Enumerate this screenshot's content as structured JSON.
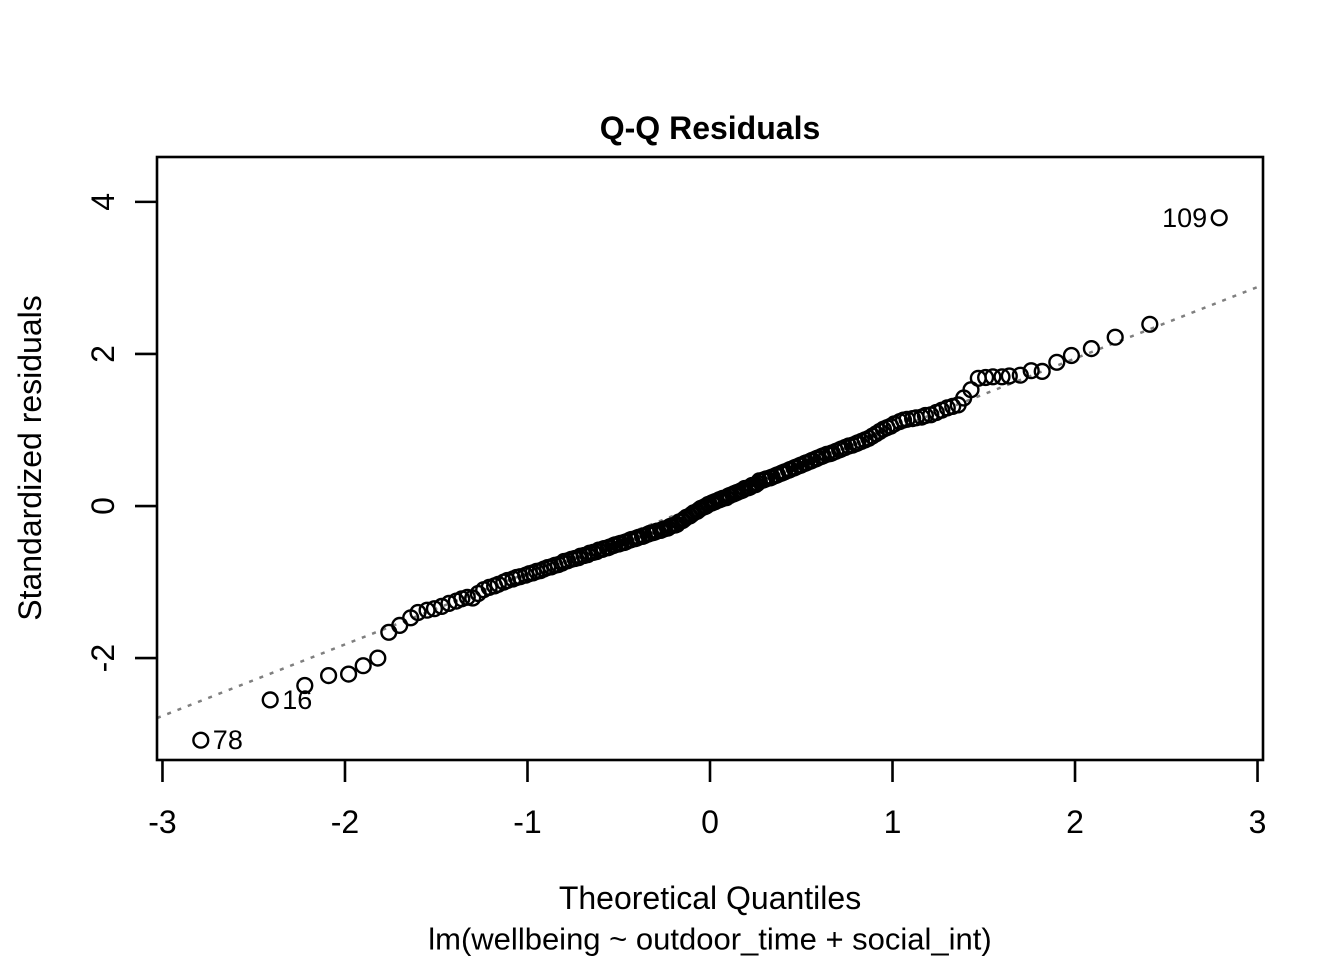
{
  "title": "Q-Q Residuals",
  "x_axis_label": "Theoretical Quantiles",
  "y_axis_label": "Standardized residuals",
  "model_label": "lm(wellbeing ~ outdoor_time + social_int)",
  "colors": {
    "foreground": "#000000",
    "background": "#ffffff",
    "reference_line": "#7f7f7f"
  },
  "chart_data": {
    "type": "scatter",
    "title": "Q-Q Residuals",
    "xlabel": "Theoretical Quantiles",
    "ylabel": "Standardized residuals",
    "subtitle": "lm(wellbeing ~ outdoor_time + social_int)",
    "grid": false,
    "legend": "none",
    "xlim": [
      -3.03,
      3.03
    ],
    "ylim": [
      -3.34,
      4.59
    ],
    "xticks": [
      -3,
      -2,
      -1,
      0,
      1,
      2,
      3
    ],
    "yticks": [
      -2,
      0,
      2,
      4
    ],
    "point_style": {
      "shape": "open-circle",
      "radius_px": 7.4,
      "stroke_px": 2.4,
      "color": "#000000"
    },
    "reference_line": {
      "slope": 0.94,
      "intercept": 0.06,
      "style": "dotted",
      "color": "#7f7f7f"
    },
    "labeled_points": [
      {
        "label": "78",
        "x": -2.79,
        "y": -3.08,
        "side": "right"
      },
      {
        "label": "16",
        "x": -2.41,
        "y": -2.55,
        "side": "right"
      },
      {
        "label": "109",
        "x": 2.79,
        "y": 3.79,
        "side": "left"
      }
    ],
    "points": [
      [
        -2.79,
        -3.08
      ],
      [
        -2.41,
        -2.55
      ],
      [
        -2.22,
        -2.36
      ],
      [
        -2.09,
        -2.23
      ],
      [
        -1.98,
        -2.21
      ],
      [
        -1.9,
        -2.1
      ],
      [
        -1.82,
        -2.0
      ],
      [
        -1.76,
        -1.66
      ],
      [
        -1.7,
        -1.57
      ],
      [
        -1.64,
        -1.47
      ],
      [
        -1.6,
        -1.4
      ],
      [
        -1.55,
        -1.37
      ],
      [
        -1.51,
        -1.35
      ],
      [
        -1.47,
        -1.32
      ],
      [
        -1.43,
        -1.28
      ],
      [
        -1.39,
        -1.25
      ],
      [
        -1.36,
        -1.22
      ],
      [
        -1.33,
        -1.2
      ],
      [
        -1.3,
        -1.21
      ],
      [
        -1.27,
        -1.15
      ],
      [
        -1.24,
        -1.1
      ],
      [
        -1.21,
        -1.07
      ],
      [
        -1.18,
        -1.05
      ],
      [
        -1.16,
        -1.03
      ],
      [
        -1.13,
        -1.0
      ],
      [
        -1.11,
        -0.98
      ],
      [
        -1.08,
        -0.96
      ],
      [
        -1.06,
        -0.94
      ],
      [
        -1.04,
        -0.93
      ],
      [
        -1.01,
        -0.91
      ],
      [
        -0.99,
        -0.89
      ],
      [
        -0.97,
        -0.88
      ],
      [
        -0.95,
        -0.86
      ],
      [
        -0.93,
        -0.85
      ],
      [
        -0.91,
        -0.83
      ],
      [
        -0.89,
        -0.81
      ],
      [
        -0.87,
        -0.8
      ],
      [
        -0.85,
        -0.78
      ],
      [
        -0.83,
        -0.77
      ],
      [
        -0.81,
        -0.75
      ],
      [
        -0.8,
        -0.73
      ],
      [
        -0.78,
        -0.72
      ],
      [
        -0.76,
        -0.7
      ],
      [
        -0.74,
        -0.69
      ],
      [
        -0.72,
        -0.68
      ],
      [
        -0.71,
        -0.66
      ],
      [
        -0.69,
        -0.65
      ],
      [
        -0.67,
        -0.64
      ],
      [
        -0.66,
        -0.62
      ],
      [
        -0.64,
        -0.61
      ],
      [
        -0.62,
        -0.6
      ],
      [
        -0.61,
        -0.58
      ],
      [
        -0.59,
        -0.57
      ],
      [
        -0.58,
        -0.56
      ],
      [
        -0.56,
        -0.55
      ],
      [
        -0.55,
        -0.54
      ],
      [
        -0.53,
        -0.52
      ],
      [
        -0.52,
        -0.51
      ],
      [
        -0.5,
        -0.5
      ],
      [
        -0.49,
        -0.49
      ],
      [
        -0.47,
        -0.48
      ],
      [
        -0.46,
        -0.47
      ],
      [
        -0.44,
        -0.45
      ],
      [
        -0.43,
        -0.44
      ],
      [
        -0.41,
        -0.43
      ],
      [
        -0.4,
        -0.42
      ],
      [
        -0.39,
        -0.41
      ],
      [
        -0.37,
        -0.4
      ],
      [
        -0.36,
        -0.39
      ],
      [
        -0.34,
        -0.37
      ],
      [
        -0.33,
        -0.36
      ],
      [
        -0.31,
        -0.35
      ],
      [
        -0.3,
        -0.34
      ],
      [
        -0.29,
        -0.33
      ],
      [
        -0.27,
        -0.32
      ],
      [
        -0.26,
        -0.31
      ],
      [
        -0.25,
        -0.3
      ],
      [
        -0.23,
        -0.29
      ],
      [
        -0.22,
        -0.27
      ],
      [
        -0.21,
        -0.26
      ],
      [
        -0.19,
        -0.25
      ],
      [
        -0.18,
        -0.24
      ],
      [
        -0.17,
        -0.21
      ],
      [
        -0.15,
        -0.19
      ],
      [
        -0.14,
        -0.17
      ],
      [
        -0.13,
        -0.15
      ],
      [
        -0.11,
        -0.13
      ],
      [
        -0.1,
        -0.11
      ],
      [
        -0.09,
        -0.09
      ],
      [
        -0.07,
        -0.07
      ],
      [
        -0.06,
        -0.05
      ],
      [
        -0.05,
        -0.03
      ],
      [
        -0.03,
        -0.01
      ],
      [
        -0.02,
        0.0
      ],
      [
        -0.01,
        0.02
      ],
      [
        0.01,
        0.04
      ],
      [
        0.02,
        0.05
      ],
      [
        0.03,
        0.06
      ],
      [
        0.05,
        0.08
      ],
      [
        0.06,
        0.09
      ],
      [
        0.07,
        0.1
      ],
      [
        0.09,
        0.11
      ],
      [
        0.1,
        0.13
      ],
      [
        0.11,
        0.14
      ],
      [
        0.13,
        0.16
      ],
      [
        0.14,
        0.17
      ],
      [
        0.15,
        0.18
      ],
      [
        0.17,
        0.2
      ],
      [
        0.18,
        0.21
      ],
      [
        0.19,
        0.23
      ],
      [
        0.21,
        0.24
      ],
      [
        0.22,
        0.25
      ],
      [
        0.23,
        0.27
      ],
      [
        0.25,
        0.28
      ],
      [
        0.26,
        0.3
      ],
      [
        0.27,
        0.33
      ],
      [
        0.29,
        0.34
      ],
      [
        0.3,
        0.35
      ],
      [
        0.31,
        0.36
      ],
      [
        0.33,
        0.37
      ],
      [
        0.34,
        0.38
      ],
      [
        0.36,
        0.4
      ],
      [
        0.37,
        0.41
      ],
      [
        0.39,
        0.43
      ],
      [
        0.4,
        0.44
      ],
      [
        0.41,
        0.45
      ],
      [
        0.43,
        0.47
      ],
      [
        0.44,
        0.48
      ],
      [
        0.46,
        0.5
      ],
      [
        0.47,
        0.51
      ],
      [
        0.49,
        0.53
      ],
      [
        0.5,
        0.54
      ],
      [
        0.52,
        0.56
      ],
      [
        0.53,
        0.57
      ],
      [
        0.55,
        0.59
      ],
      [
        0.56,
        0.6
      ],
      [
        0.58,
        0.62
      ],
      [
        0.59,
        0.63
      ],
      [
        0.61,
        0.65
      ],
      [
        0.62,
        0.66
      ],
      [
        0.64,
        0.68
      ],
      [
        0.66,
        0.69
      ],
      [
        0.67,
        0.7
      ],
      [
        0.69,
        0.72
      ],
      [
        0.71,
        0.74
      ],
      [
        0.72,
        0.75
      ],
      [
        0.74,
        0.77
      ],
      [
        0.76,
        0.79
      ],
      [
        0.78,
        0.8
      ],
      [
        0.8,
        0.82
      ],
      [
        0.81,
        0.83
      ],
      [
        0.83,
        0.85
      ],
      [
        0.85,
        0.87
      ],
      [
        0.87,
        0.89
      ],
      [
        0.89,
        0.92
      ],
      [
        0.91,
        0.95
      ],
      [
        0.93,
        0.98
      ],
      [
        0.95,
        1.01
      ],
      [
        0.97,
        1.03
      ],
      [
        0.99,
        1.05
      ],
      [
        1.01,
        1.08
      ],
      [
        1.04,
        1.11
      ],
      [
        1.06,
        1.13
      ],
      [
        1.08,
        1.14
      ],
      [
        1.11,
        1.15
      ],
      [
        1.13,
        1.16
      ],
      [
        1.16,
        1.17
      ],
      [
        1.18,
        1.19
      ],
      [
        1.21,
        1.2
      ],
      [
        1.24,
        1.23
      ],
      [
        1.27,
        1.26
      ],
      [
        1.3,
        1.29
      ],
      [
        1.33,
        1.31
      ],
      [
        1.36,
        1.33
      ],
      [
        1.39,
        1.42
      ],
      [
        1.43,
        1.53
      ],
      [
        1.47,
        1.68
      ],
      [
        1.51,
        1.69
      ],
      [
        1.55,
        1.7
      ],
      [
        1.6,
        1.7
      ],
      [
        1.64,
        1.71
      ],
      [
        1.7,
        1.72
      ],
      [
        1.76,
        1.78
      ],
      [
        1.82,
        1.77
      ],
      [
        1.9,
        1.89
      ],
      [
        1.98,
        1.98
      ],
      [
        2.09,
        2.07
      ],
      [
        2.22,
        2.22
      ],
      [
        2.41,
        2.39
      ],
      [
        2.79,
        3.79
      ]
    ]
  }
}
